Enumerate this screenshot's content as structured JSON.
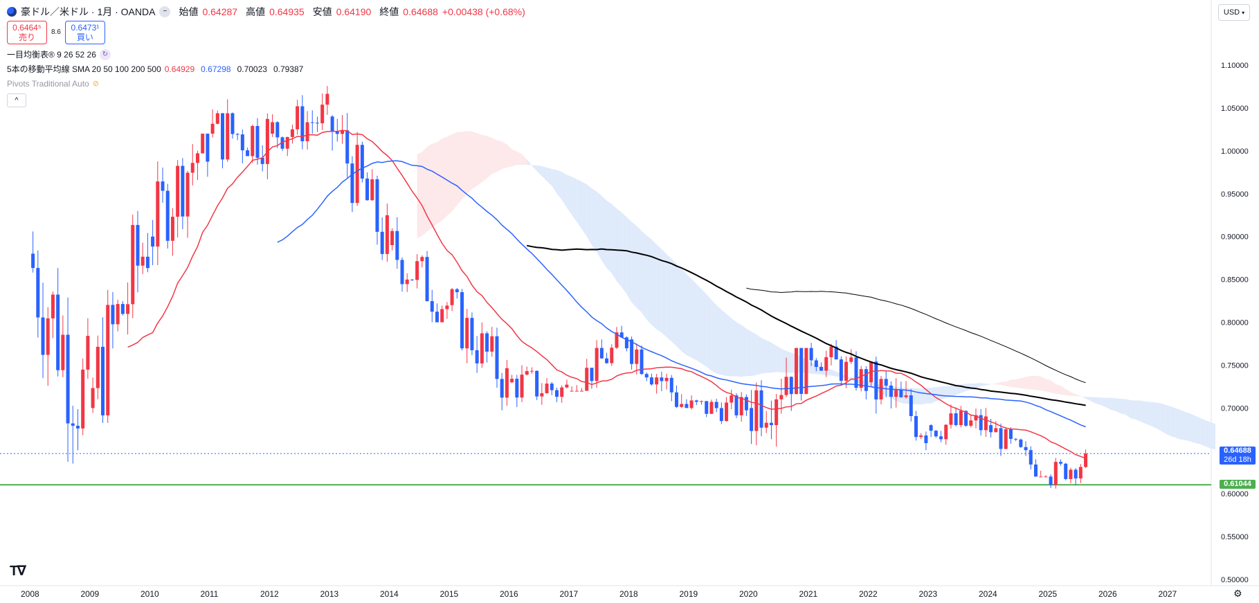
{
  "header": {
    "symbol": "豪ドル／米ドル · 1月 · OANDA",
    "open_label": "始値",
    "open": "0.64287",
    "high_label": "高値",
    "high": "0.64935",
    "low_label": "安値",
    "low": "0.64190",
    "close_label": "終値",
    "close": "0.64688",
    "change": "+0.00438 (+0.68%)"
  },
  "trade": {
    "sell_price": "0.6464⁵",
    "sell_label": "売り",
    "spread": "8.6",
    "buy_price": "0.6473¹",
    "buy_label": "買い"
  },
  "indicators": {
    "ichimoku": "一目均衡表® 9 26 52 26",
    "sma_label": "5本の移動平均線 SMA 20 50 100 200 500",
    "sma_values": [
      "0.64929",
      "0.67298",
      "0.70023",
      "0.79387"
    ],
    "pivots": "Pivots Traditional Auto"
  },
  "currency": "USD",
  "price_tags": {
    "last": "0.64688",
    "countdown": "26d 18h",
    "support": "0.61044"
  },
  "colors": {
    "up": "#f23645",
    "down": "#2962ff",
    "sma20": "#f23645",
    "sma50": "#2962ff",
    "sma100": "#000000",
    "sma200": "#000000",
    "support": "#4caf50",
    "cloud_bull": "#fde8ea",
    "cloud_bear": "#dfeafb"
  },
  "chart_data": {
    "type": "candlestick",
    "y_axis_ticks": [
      "0.50000",
      "0.55000",
      "0.60000",
      "0.65000",
      "0.70000",
      "0.75000",
      "0.80000",
      "0.85000",
      "0.90000",
      "0.95000",
      "1.00000",
      "1.05000",
      "1.10000"
    ],
    "ylim": [
      0.5,
      1.12
    ],
    "x_axis_ticks": [
      "2008",
      "2009",
      "2010",
      "2011",
      "2012",
      "2013",
      "2014",
      "2015",
      "2016",
      "2017",
      "2018",
      "2019",
      "2020",
      "2021",
      "2022",
      "2023",
      "2024",
      "2025",
      "2026",
      "2027"
    ],
    "support_level": 0.61044,
    "last_price": 0.64688,
    "yearly_ohlc": [
      {
        "year": "2008",
        "open": 0.88,
        "high": 0.985,
        "low": 0.6,
        "close": 0.7
      },
      {
        "year": "2009",
        "open": 0.7,
        "high": 0.94,
        "low": 0.63,
        "close": 0.9
      },
      {
        "year": "2010",
        "open": 0.9,
        "high": 1.02,
        "low": 0.81,
        "close": 1.02
      },
      {
        "year": "2011",
        "open": 1.02,
        "high": 1.1,
        "low": 0.94,
        "close": 1.02
      },
      {
        "year": "2012",
        "open": 1.02,
        "high": 1.08,
        "low": 0.96,
        "close": 1.04
      },
      {
        "year": "2013",
        "open": 1.04,
        "high": 1.06,
        "low": 0.87,
        "close": 0.89
      },
      {
        "year": "2014",
        "open": 0.89,
        "high": 0.95,
        "low": 0.8,
        "close": 0.82
      },
      {
        "year": "2015",
        "open": 0.82,
        "high": 0.84,
        "low": 0.69,
        "close": 0.73
      },
      {
        "year": "2016",
        "open": 0.73,
        "high": 0.78,
        "low": 0.68,
        "close": 0.72
      },
      {
        "year": "2017",
        "open": 0.72,
        "high": 0.81,
        "low": 0.72,
        "close": 0.78
      },
      {
        "year": "2018",
        "open": 0.78,
        "high": 0.81,
        "low": 0.7,
        "close": 0.7
      },
      {
        "year": "2019",
        "open": 0.7,
        "high": 0.74,
        "low": 0.67,
        "close": 0.7
      },
      {
        "year": "2020",
        "open": 0.7,
        "high": 0.77,
        "low": 0.55,
        "close": 0.77
      },
      {
        "year": "2021",
        "open": 0.77,
        "high": 0.8,
        "low": 0.71,
        "close": 0.73
      },
      {
        "year": "2022",
        "open": 0.73,
        "high": 0.76,
        "low": 0.62,
        "close": 0.68
      },
      {
        "year": "2023",
        "open": 0.68,
        "high": 0.72,
        "low": 0.63,
        "close": 0.68
      },
      {
        "year": "2024",
        "open": 0.68,
        "high": 0.69,
        "low": 0.62,
        "close": 0.62
      },
      {
        "year": "2025",
        "open": 0.62,
        "high": 0.66,
        "low": 0.59,
        "close": 0.647
      }
    ]
  }
}
